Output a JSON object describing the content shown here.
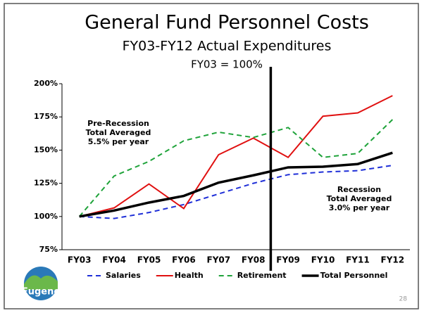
{
  "chart_data": {
    "type": "line",
    "title": "General Fund Personnel Costs",
    "subtitle": "FY03-FY12 Actual Expenditures",
    "note": "FY03 = 100%",
    "categories": [
      "FY03",
      "FY04",
      "FY05",
      "FY06",
      "FY07",
      "FY08",
      "FY09",
      "FY10",
      "FY11",
      "FY12"
    ],
    "series": [
      {
        "name": "Salaries",
        "color": "#1f2fd8",
        "dash": "dash",
        "values": [
          100,
          98.5,
          103,
          109,
          117,
          125,
          131.5,
          133.5,
          134.5,
          138.5
        ]
      },
      {
        "name": "Health",
        "color": "#e01010",
        "dash": "solid",
        "values": [
          100,
          106.5,
          124.5,
          106,
          146.5,
          159,
          144.5,
          175.5,
          178,
          191
        ]
      },
      {
        "name": "Retirement",
        "color": "#1fa33a",
        "dash": "dash",
        "values": [
          100,
          130.5,
          141.5,
          157,
          163.5,
          159.5,
          167,
          144.5,
          147.5,
          173
        ]
      },
      {
        "name": "Total Personnel",
        "color": "#000000",
        "dash": "solid",
        "values": [
          100,
          104.5,
          110.5,
          115.5,
          125.5,
          131,
          137,
          137.5,
          139.5,
          148
        ]
      }
    ],
    "ylim": [
      75,
      200
    ],
    "yticks": [
      {
        "value": 75,
        "label": "75%"
      },
      {
        "value": 100,
        "label": "100%"
      },
      {
        "value": 125,
        "label": "125%"
      },
      {
        "value": 150,
        "label": "150%"
      },
      {
        "value": 175,
        "label": "175%"
      },
      {
        "value": 200,
        "label": "200%"
      }
    ],
    "annotations": [
      [
        "Pre-Recession",
        "Total Averaged",
        "5.5% per year"
      ],
      [
        "Recession",
        "Total Averaged",
        "3.0% per year"
      ]
    ],
    "logo": "Eugene",
    "page_number": "28"
  }
}
